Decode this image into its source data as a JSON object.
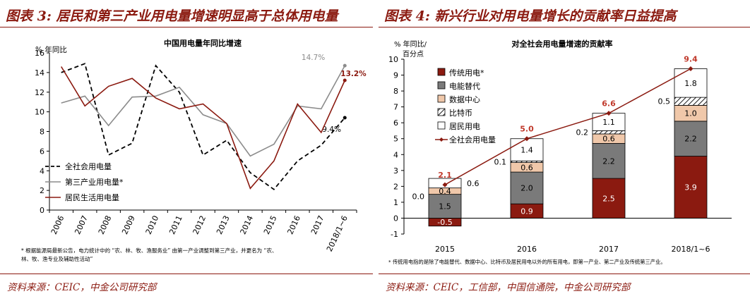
{
  "left": {
    "figure_title": "图表 3: 居民和第三产业用电量增速明显高于总体用电量",
    "source": "资料来源：CEIC，中金公司研究部",
    "footnote_line1": "* 根据能源局最新公告，电力统计中的 “农、林、牧、渔服务业” 由第一产业调整到第三产业，并更名为 “农、",
    "footnote_line2": "林、牧、渔专业及辅助性活动”"
  },
  "right": {
    "figure_title": "图表 4: 新兴行业对用电量增长的贡献率日益提高",
    "source": "资料来源：CEIC，工信部，中国信通院，中金公司研究部",
    "footnote": "* 传统用电指的是除了电能替代、数据中心、比特币及居民用电以外的所有用电，即第一产业、第二产业及传统第三产业。"
  },
  "chart_data": [
    {
      "type": "line",
      "title": "中国用电量年同比增速",
      "ylabel": "% 年同比",
      "ylim": [
        0,
        16
      ],
      "yticks": [
        0,
        2,
        4,
        6,
        8,
        10,
        12,
        14,
        16
      ],
      "x": [
        "2006",
        "2007",
        "2008",
        "2009",
        "2010",
        "2011",
        "2012",
        "2013",
        "2014",
        "2015",
        "2016",
        "2017",
        "2018/1~6"
      ],
      "grid": false,
      "legend": "bottom-left",
      "series": [
        {
          "name": "全社会用电量",
          "color": "#000000",
          "style": "dashed",
          "values": [
            14.0,
            14.9,
            5.6,
            6.8,
            14.7,
            12.0,
            5.6,
            7.1,
            3.8,
            2.1,
            5.0,
            6.6,
            9.4
          ],
          "end_label": "9.4%"
        },
        {
          "name": "第三产业用电量*",
          "color": "#8c8c8c",
          "style": "solid",
          "values": [
            10.9,
            11.6,
            8.6,
            11.5,
            11.6,
            12.5,
            9.7,
            8.8,
            5.5,
            6.7,
            10.6,
            10.3,
            14.7
          ],
          "end_label": "14.7%"
        },
        {
          "name": "居民生活用电量",
          "color": "#8B1A10",
          "style": "solid",
          "values": [
            14.6,
            10.6,
            12.6,
            13.4,
            11.4,
            10.3,
            10.8,
            8.8,
            2.2,
            5.0,
            10.8,
            7.9,
            13.2
          ],
          "end_label": "13.2%"
        }
      ]
    },
    {
      "type": "bar",
      "stacked": true,
      "title": "对全社会用电量增速的贡献率",
      "ylabel_line1": "% 年同比/",
      "ylabel_line2": "百分点",
      "ylim": [
        -1,
        10
      ],
      "yticks": [
        -1,
        0,
        1,
        2,
        3,
        4,
        5,
        6,
        7,
        8,
        9,
        10
      ],
      "categories": [
        "2015",
        "2016",
        "2017",
        "2018/1~6"
      ],
      "grid": false,
      "legend": "top-left",
      "series": [
        {
          "name": "传统用电*",
          "color": "#8B1A10",
          "values": [
            -0.5,
            0.9,
            2.5,
            3.9
          ]
        },
        {
          "name": "电能替代",
          "color": "#7a7a7a",
          "values": [
            1.5,
            2.0,
            2.2,
            2.2
          ]
        },
        {
          "name": "数据中心",
          "color": "#f0c8aa",
          "values": [
            0.4,
            0.6,
            0.6,
            1.0
          ]
        },
        {
          "name": "比特币",
          "color": "hatch",
          "values": [
            0.0,
            0.1,
            0.2,
            0.5
          ]
        },
        {
          "name": "居民用电",
          "color": "#ffffff",
          "values": [
            0.6,
            1.4,
            1.1,
            1.8
          ]
        }
      ],
      "line": {
        "name": "全社会用电量",
        "color": "#8B1A10",
        "values": [
          2.1,
          5.0,
          6.6,
          9.4
        ]
      },
      "value_labels": [
        [
          "-0.5",
          "1.5",
          "0.4",
          "0.0",
          "0.6"
        ],
        [
          "0.9",
          "2.0",
          "0.6",
          "0.1",
          "1.4"
        ],
        [
          "2.5",
          "2.2",
          "0.6",
          "0.2",
          "1.1"
        ],
        [
          "3.9",
          "2.2",
          "1.0",
          "0.5",
          "1.8"
        ]
      ],
      "total_labels": [
        "2.1",
        "5.0",
        "6.6",
        "9.4"
      ]
    }
  ]
}
